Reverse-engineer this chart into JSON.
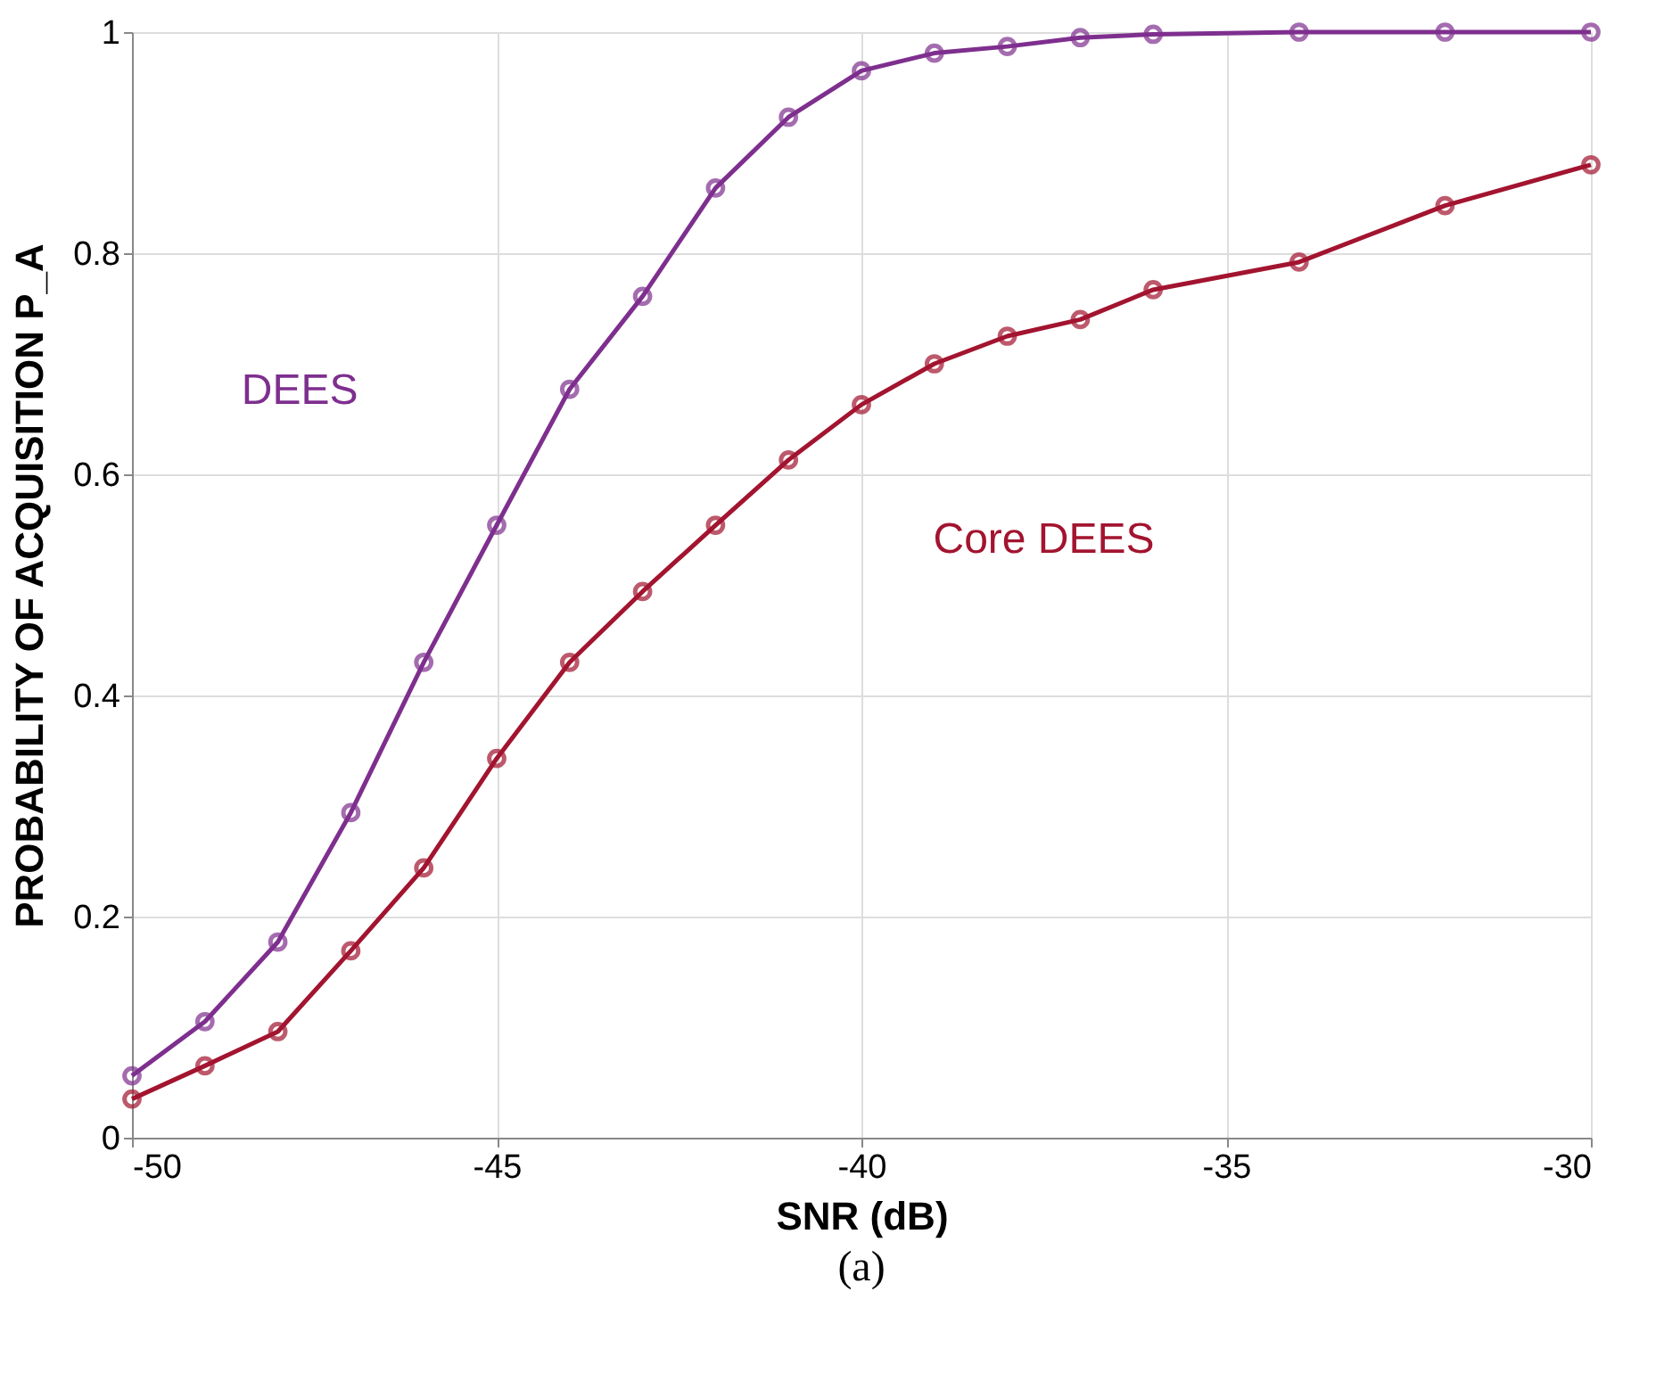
{
  "chart_data": {
    "type": "line",
    "xlabel": "SNR (dB)",
    "ylabel": "PROBABILITY OF ACQUISITION P_A",
    "x": [
      -50,
      -49,
      -48,
      -47,
      -46,
      -45,
      -44,
      -43,
      -42,
      -41,
      -40,
      -39,
      -38,
      -37,
      -36,
      -34,
      -32,
      -30
    ],
    "series": [
      {
        "name": "DEES",
        "color": "#7e2f8e",
        "values": [
          0.056,
          0.105,
          0.177,
          0.294,
          0.43,
          0.554,
          0.677,
          0.761,
          0.859,
          0.923,
          0.965,
          0.981,
          0.987,
          0.995,
          0.998,
          1.0,
          1.0,
          1.0
        ]
      },
      {
        "name": "Core DEES",
        "color": "#a2142f",
        "values": [
          0.035,
          0.065,
          0.096,
          0.169,
          0.244,
          0.343,
          0.43,
          0.494,
          0.554,
          0.613,
          0.663,
          0.7,
          0.725,
          0.74,
          0.767,
          0.792,
          0.843,
          0.88
        ]
      }
    ],
    "xlim": [
      -50,
      -30
    ],
    "xticks": [
      -50,
      -45,
      -40,
      -35,
      -30
    ],
    "ylim": [
      0,
      1
    ],
    "yticks": [
      0,
      0.2,
      0.4,
      0.6,
      0.8,
      1
    ],
    "annotations": [
      "(a)"
    ],
    "grid": true,
    "legend": false,
    "marker": "circle",
    "line_style": "solid"
  }
}
